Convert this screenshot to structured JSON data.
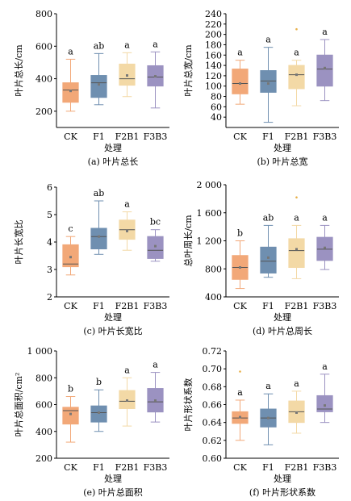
{
  "colors": {
    "CK": "#f2a878",
    "F1": "#6f8fb0",
    "F2B1": "#f3d9a6",
    "F3B3": "#9b92c1",
    "median": "#555555",
    "mean": "#777777",
    "outlier": "#e8b04a"
  },
  "chart_data": [
    {
      "type": "box",
      "caption": "(a) 叶片总长",
      "xlabel": "处理",
      "ylabel": "叶片总长/cm",
      "ylim": [
        100,
        800
      ],
      "yticks": [
        200,
        400,
        600,
        800
      ],
      "ytick_labels": [
        "200",
        "400",
        "600",
        "800"
      ],
      "categories": [
        "CK",
        "F1",
        "F2B1",
        "F3B3"
      ],
      "boxes": [
        {
          "min": 200,
          "q1": 255,
          "median": 330,
          "q3": 375,
          "max": 520,
          "mean": 325,
          "letter": "a",
          "outliers": []
        },
        {
          "min": 240,
          "q1": 285,
          "median": 375,
          "q3": 420,
          "max": 555,
          "mean": 365,
          "letter": "ab",
          "outliers": []
        },
        {
          "min": 290,
          "q1": 360,
          "median": 400,
          "q3": 490,
          "max": 560,
          "mean": 420,
          "letter": "a",
          "outliers": []
        },
        {
          "min": 220,
          "q1": 355,
          "median": 410,
          "q3": 480,
          "max": 565,
          "mean": 415,
          "letter": "a",
          "outliers": []
        }
      ]
    },
    {
      "type": "box",
      "caption": "(b) 叶片总宽",
      "xlabel": "处理",
      "ylabel": "叶片总宽/cm",
      "ylim": [
        20,
        240
      ],
      "yticks": [
        40,
        60,
        80,
        100,
        120,
        140,
        160,
        180,
        200,
        220,
        240
      ],
      "ytick_labels": [
        "40",
        "60",
        "80",
        "100",
        "120",
        "140",
        "160",
        "180",
        "200",
        "220",
        "240"
      ],
      "categories": [
        "CK",
        "F1",
        "F2B1",
        "F3B3"
      ],
      "boxes": [
        {
          "min": 65,
          "q1": 85,
          "median": 105,
          "q3": 133,
          "max": 150,
          "mean": 105,
          "letter": "a",
          "outliers": []
        },
        {
          "min": 30,
          "q1": 88,
          "median": 110,
          "q3": 130,
          "max": 175,
          "mean": 105,
          "letter": "a",
          "outliers": []
        },
        {
          "min": 62,
          "q1": 95,
          "median": 122,
          "q3": 140,
          "max": 150,
          "mean": 122,
          "letter": "a",
          "outliers": [
            210
          ]
        },
        {
          "min": 72,
          "q1": 100,
          "median": 133,
          "q3": 160,
          "max": 190,
          "mean": 135,
          "letter": "a",
          "outliers": []
        }
      ]
    },
    {
      "type": "box",
      "caption": "(c) 叶片长宽比",
      "xlabel": "处理",
      "ylabel": "叶片长宽比",
      "ylim": [
        2,
        6
      ],
      "yticks": [
        2,
        3,
        4,
        5,
        6
      ],
      "ytick_labels": [
        "2",
        "3",
        "4",
        "5",
        "6"
      ],
      "categories": [
        "CK",
        "F1",
        "F2B1",
        "F3B3"
      ],
      "boxes": [
        {
          "min": 2.8,
          "q1": 3.1,
          "median": 3.2,
          "q3": 3.9,
          "max": 4.2,
          "mean": 3.45,
          "letter": "c",
          "outliers": []
        },
        {
          "min": 3.55,
          "q1": 3.75,
          "median": 4.2,
          "q3": 4.5,
          "max": 5.5,
          "mean": 4.2,
          "letter": "ab",
          "outliers": []
        },
        {
          "min": 3.7,
          "q1": 4.1,
          "median": 4.45,
          "q3": 4.8,
          "max": 5.1,
          "mean": 4.4,
          "letter": "a",
          "outliers": []
        },
        {
          "min": 3.3,
          "q1": 3.4,
          "median": 3.7,
          "q3": 4.2,
          "max": 4.45,
          "mean": 3.85,
          "letter": "bc",
          "outliers": []
        }
      ]
    },
    {
      "type": "box",
      "caption": "(d) 叶片总周长",
      "xlabel": "处理",
      "ylabel": "总叶周长/cm",
      "ylim": [
        400,
        2000
      ],
      "yticks": [
        400,
        800,
        1200,
        1600,
        2000
      ],
      "ytick_labels": [
        "400",
        "800",
        "1 200",
        "1 600",
        "2 000"
      ],
      "categories": [
        "CK",
        "F1",
        "F2B1",
        "F3B3"
      ],
      "boxes": [
        {
          "min": 520,
          "q1": 650,
          "median": 820,
          "q3": 990,
          "max": 1200,
          "mean": 820,
          "letter": "b",
          "outliers": []
        },
        {
          "min": 680,
          "q1": 740,
          "median": 910,
          "q3": 1110,
          "max": 1420,
          "mean": 960,
          "letter": "ab",
          "outliers": []
        },
        {
          "min": 660,
          "q1": 820,
          "median": 1060,
          "q3": 1230,
          "max": 1420,
          "mean": 1080,
          "letter": "a",
          "outliers": [
            1820
          ]
        },
        {
          "min": 790,
          "q1": 920,
          "median": 1080,
          "q3": 1250,
          "max": 1420,
          "mean": 1100,
          "letter": "a",
          "outliers": []
        }
      ]
    },
    {
      "type": "box",
      "caption": "(e) 叶片总面积",
      "xlabel": "处理",
      "ylabel": "叶片总面积/cm²",
      "ylim": [
        200,
        1000
      ],
      "yticks": [
        200,
        400,
        600,
        800,
        1000
      ],
      "ytick_labels": [
        "200",
        "400",
        "600",
        "800",
        "1 000"
      ],
      "categories": [
        "CK",
        "F1",
        "F2B1",
        "F3B3"
      ],
      "boxes": [
        {
          "min": 320,
          "q1": 455,
          "median": 555,
          "q3": 580,
          "max": 660,
          "mean": 530,
          "letter": "b",
          "outliers": []
        },
        {
          "min": 400,
          "q1": 470,
          "median": 540,
          "q3": 590,
          "max": 710,
          "mean": 540,
          "letter": "b",
          "outliers": []
        },
        {
          "min": 440,
          "q1": 570,
          "median": 625,
          "q3": 705,
          "max": 800,
          "mean": 630,
          "letter": "a",
          "outliers": []
        },
        {
          "min": 470,
          "q1": 545,
          "median": 620,
          "q3": 720,
          "max": 840,
          "mean": 630,
          "letter": "a",
          "outliers": []
        }
      ]
    },
    {
      "type": "box",
      "caption": "(f) 叶片形状系数",
      "xlabel": "处理",
      "ylabel": "叶片形状系数",
      "ylim": [
        0.6,
        0.72
      ],
      "yticks": [
        0.6,
        0.62,
        0.64,
        0.66,
        0.68,
        0.7,
        0.72
      ],
      "ytick_labels": [
        "0.60",
        "0.62",
        "0.64",
        "0.66",
        "0.68",
        "0.70",
        "0.72"
      ],
      "categories": [
        "CK",
        "F1",
        "F2B1",
        "F3B3"
      ],
      "boxes": [
        {
          "min": 0.62,
          "q1": 0.639,
          "median": 0.645,
          "q3": 0.652,
          "max": 0.665,
          "mean": 0.646,
          "letter": "a",
          "outliers": [
            0.697
          ]
        },
        {
          "min": 0.615,
          "q1": 0.635,
          "median": 0.645,
          "q3": 0.655,
          "max": 0.672,
          "mean": 0.645,
          "letter": "a",
          "outliers": []
        },
        {
          "min": 0.628,
          "q1": 0.64,
          "median": 0.652,
          "q3": 0.664,
          "max": 0.675,
          "mean": 0.651,
          "letter": "a",
          "outliers": []
        },
        {
          "min": 0.64,
          "q1": 0.652,
          "median": 0.655,
          "q3": 0.67,
          "max": 0.694,
          "mean": 0.659,
          "letter": "a",
          "outliers": []
        }
      ]
    }
  ]
}
